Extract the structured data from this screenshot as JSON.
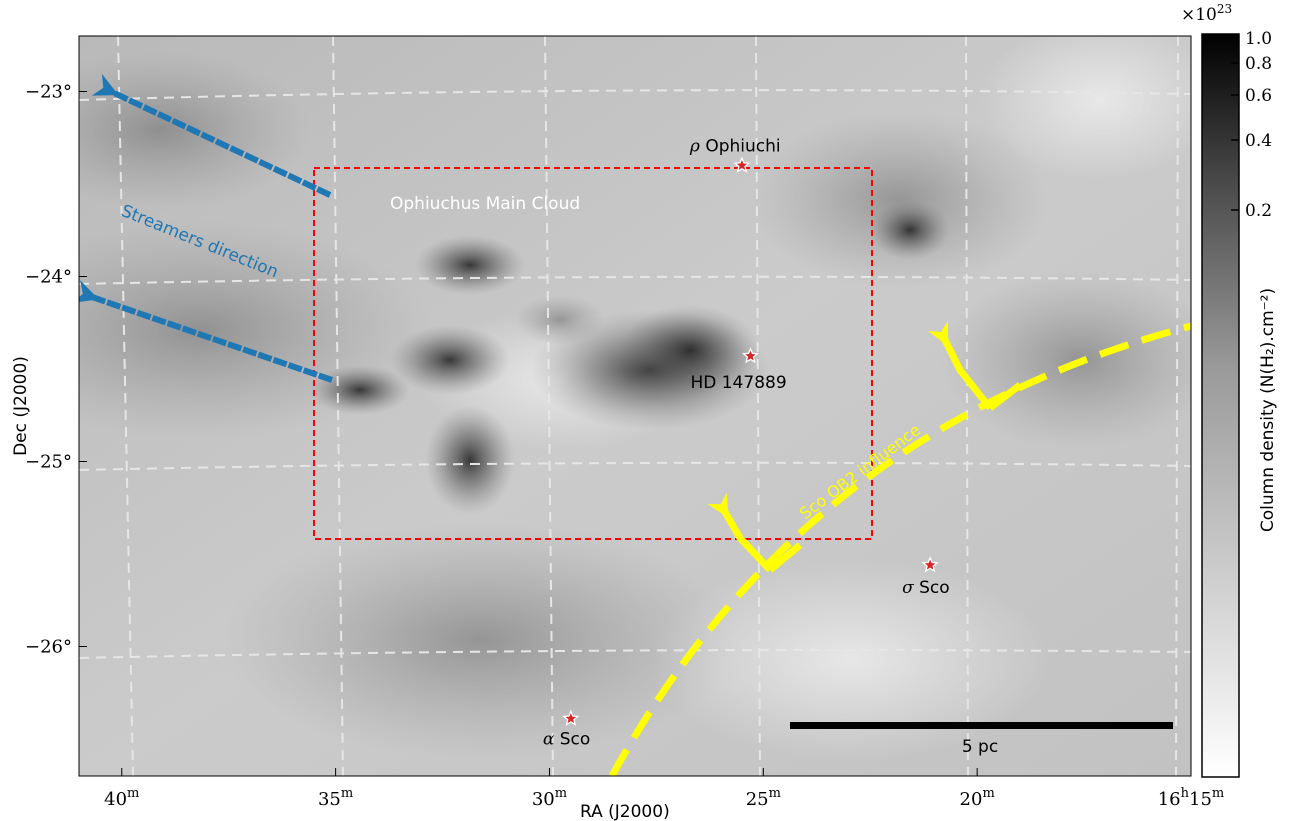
{
  "chart_data": {
    "type": "heatmap",
    "xlabel": "RA (J2000)",
    "ylabel": "Dec (J2000)",
    "x_ticks": [
      {
        "value": 40,
        "label": "40",
        "sup": "m"
      },
      {
        "value": 35,
        "label": "35",
        "sup": "m"
      },
      {
        "value": 30,
        "label": "30",
        "sup": "m"
      },
      {
        "value": 25,
        "label": "25",
        "sup": "m"
      },
      {
        "value": 20,
        "label": "20",
        "sup": "m"
      },
      {
        "value": 15,
        "label": "16",
        "sup": "h",
        "label2": "15",
        "sup2": "m"
      }
    ],
    "y_ticks": [
      {
        "value": -23,
        "label": "−23°"
      },
      {
        "value": -24,
        "label": "−24°"
      },
      {
        "value": -25,
        "label": "−25°"
      },
      {
        "value": -26,
        "label": "−26°"
      }
    ],
    "x_range_minutes": [
      41,
      15
    ],
    "y_range_deg": [
      -22.7,
      -26.7
    ],
    "grid": true,
    "colorbar": {
      "label": "Column density (N(H₂).cm⁻²)",
      "multiplier": "×10",
      "multiplier_exp": "23",
      "ticks": [
        {
          "value": 1.0,
          "label": "1.0"
        },
        {
          "value": 0.8,
          "label": "0.8"
        },
        {
          "value": 0.6,
          "label": "0.6"
        },
        {
          "value": 0.4,
          "label": "0.4"
        },
        {
          "value": 0.2,
          "label": "0.2"
        }
      ]
    },
    "annotations": {
      "region_label": "Ophiuchus Main Cloud",
      "streamers_label": "Streamers direction",
      "influence_label": "Sco OB2 influence",
      "scale_bar_label": "5 pc"
    },
    "stars": [
      {
        "greek": "ρ",
        "name": " Ophiuchi",
        "ra": 25.5,
        "dec": -23.4
      },
      {
        "greek": "",
        "name": "HD 147889",
        "ra": 25.3,
        "dec": -24.43
      },
      {
        "greek": "σ",
        "name": " Sco",
        "ra": 21.1,
        "dec": -25.56
      },
      {
        "greek": "α",
        "name": " Sco",
        "ra": 29.5,
        "dec": -26.39
      }
    ],
    "colors": {
      "streamers": "#1f77b4",
      "influence": "#ffff00",
      "region": "#ff0000",
      "star_fill": "#d62728"
    }
  }
}
